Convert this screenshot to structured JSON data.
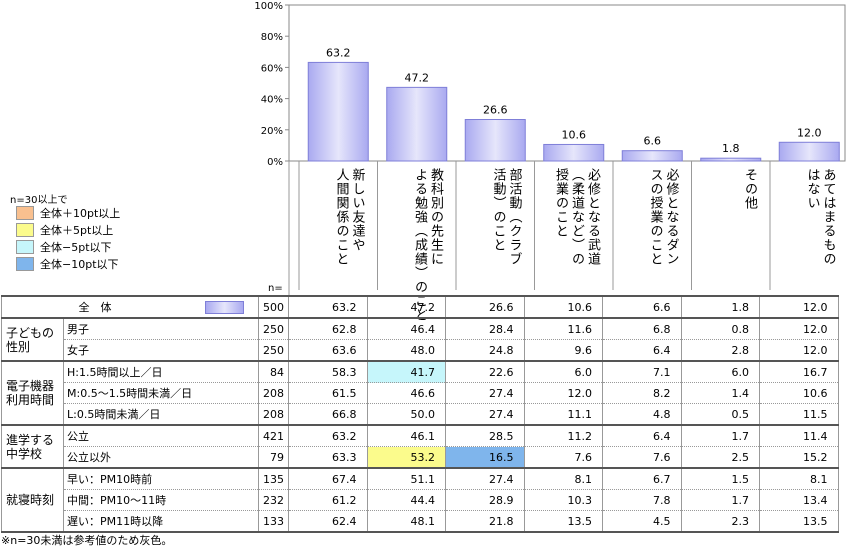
{
  "chart_data": {
    "type": "bar",
    "ylim": [
      0,
      100
    ],
    "yticks": [
      "100%",
      "80%",
      "60%",
      "40%",
      "20%",
      "0%"
    ],
    "categories": [
      "新しい友達や人間関係のこと",
      "教科別の先生による勉強（成績）のこと",
      "部活動（クラブ活動）のこと",
      "必修となる武道（柔道など）の授業のこと",
      "必修となるダンスの授業のこと",
      "その他",
      "あてはまるものはない"
    ],
    "values": [
      63.2,
      47.2,
      26.6,
      10.6,
      6.6,
      1.8,
      12.0
    ],
    "value_labels": [
      "63.2",
      "47.2",
      "26.6",
      "10.6",
      "6.6",
      "1.8",
      "12.0"
    ],
    "colors": {
      "bar": "#a9a9f0",
      "bar_light": "#e6e6fb"
    }
  },
  "legend": {
    "title": "n=30以上で",
    "items": [
      {
        "label": "全体＋10pt以上",
        "color": "#f9c08f"
      },
      {
        "label": "全体＋5pt以上",
        "color": "#fbfb8c"
      },
      {
        "label": "全体−5pt以下",
        "color": "#c6f6fb"
      },
      {
        "label": "全体−10pt以下",
        "color": "#7fb5ec"
      }
    ]
  },
  "cat_labels": [
    [
      "新しい友達や",
      "人間関係のこと"
    ],
    [
      "教科別の先生に",
      "よる勉強（成績）のこと"
    ],
    [
      "部活動（クラブ",
      "活動）のこと"
    ],
    [
      "必修となる武道",
      "（柔道など）の",
      "授業のこと"
    ],
    [
      "必修となるダン",
      "スの授業のこと"
    ],
    [
      "その他"
    ],
    [
      "あてはまるもの",
      "はない"
    ]
  ],
  "n_header": "n=",
  "table": {
    "total": {
      "label": "全　体",
      "n": "500",
      "values": [
        "63.2",
        "47.2",
        "26.6",
        "10.6",
        "6.6",
        "1.8",
        "12.0"
      ]
    },
    "groups": [
      {
        "label": "子どもの性別",
        "rows": [
          {
            "label": "男子",
            "n": "250",
            "values": [
              "62.8",
              "46.4",
              "28.4",
              "11.6",
              "6.8",
              "0.8",
              "12.0"
            ],
            "highlights": []
          },
          {
            "label": "女子",
            "n": "250",
            "values": [
              "63.6",
              "48.0",
              "24.8",
              "9.6",
              "6.4",
              "2.8",
              "12.0"
            ],
            "highlights": []
          }
        ]
      },
      {
        "label": "電子機器利用時間",
        "rows": [
          {
            "label": "H:1.5時間以上／日",
            "n": "84",
            "values": [
              "58.3",
              "41.7",
              "22.6",
              "6.0",
              "7.1",
              "6.0",
              "16.7"
            ],
            "highlights": [
              null,
              "#c6f6fb"
            ]
          },
          {
            "label": "M:0.5〜1.5時間未満／日",
            "n": "208",
            "values": [
              "61.5",
              "46.6",
              "27.4",
              "12.0",
              "8.2",
              "1.4",
              "10.6"
            ],
            "highlights": []
          },
          {
            "label": "L:0.5時間未満／日",
            "n": "208",
            "values": [
              "66.8",
              "50.0",
              "27.4",
              "11.1",
              "4.8",
              "0.5",
              "11.5"
            ],
            "highlights": []
          }
        ]
      },
      {
        "label": "進学する中学校",
        "rows": [
          {
            "label": "公立",
            "n": "421",
            "values": [
              "63.2",
              "46.1",
              "28.5",
              "11.2",
              "6.4",
              "1.7",
              "11.4"
            ],
            "highlights": []
          },
          {
            "label": "公立以外",
            "n": "79",
            "values": [
              "63.3",
              "53.2",
              "16.5",
              "7.6",
              "7.6",
              "2.5",
              "15.2"
            ],
            "highlights": [
              null,
              "#fbfb8c",
              "#7fb5ec"
            ]
          }
        ]
      },
      {
        "label": "就寝時刻",
        "rows": [
          {
            "label": "早い：PM10時前",
            "n": "135",
            "values": [
              "67.4",
              "51.1",
              "27.4",
              "8.1",
              "6.7",
              "1.5",
              "8.1"
            ],
            "highlights": []
          },
          {
            "label": "中間：PM10〜11時",
            "n": "232",
            "values": [
              "61.2",
              "44.4",
              "28.9",
              "10.3",
              "7.8",
              "1.7",
              "13.4"
            ],
            "highlights": []
          },
          {
            "label": "遅い：PM11時以降",
            "n": "133",
            "values": [
              "62.4",
              "48.1",
              "21.8",
              "13.5",
              "4.5",
              "2.3",
              "13.5"
            ],
            "highlights": []
          }
        ]
      }
    ]
  },
  "note": "※n=30未満は参考値のため灰色。"
}
